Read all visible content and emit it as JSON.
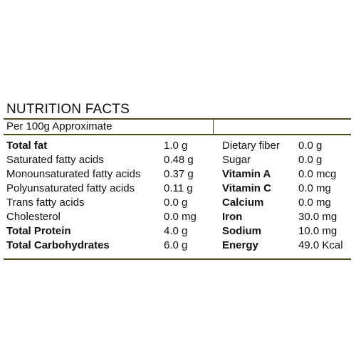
{
  "title": "NUTRITION FACTS",
  "serving": "Per 100g Approximate",
  "left_rows": [
    {
      "label": "Total fat",
      "value": "1.0 g",
      "bold": true
    },
    {
      "label": "Saturated fatty acids",
      "value": "0.48 g",
      "bold": false
    },
    {
      "label": "Monounsaturated fatty acids",
      "value": "0.37 g",
      "bold": false
    },
    {
      "label": "Polyunsaturated fatty acids",
      "value": "0.11 g",
      "bold": false
    },
    {
      "label": "Trans fatty acids",
      "value": "0.0 g",
      "bold": false
    },
    {
      "label": "Cholesterol",
      "value": "0.0 mg",
      "bold": false
    },
    {
      "label": "Total Protein",
      "value": "4.0 g",
      "bold": true
    },
    {
      "label": "Total Carbohydrates",
      "value": "6.0 g",
      "bold": true
    }
  ],
  "right_rows": [
    {
      "label": "Dietary fiber",
      "value": "0.0 g",
      "bold": false
    },
    {
      "label": "Sugar",
      "value": "0.0 g",
      "bold": false
    },
    {
      "label": "Vitamin A",
      "value": "0.0 mcg",
      "bold": true
    },
    {
      "label": "Vitamin C",
      "value": "0.0 mg",
      "bold": true
    },
    {
      "label": "Calcium",
      "value": "0.0 mg",
      "bold": true
    },
    {
      "label": "Iron",
      "value": "30.0 mg",
      "bold": true
    },
    {
      "label": "Sodium",
      "value": "10.0 mg",
      "bold": true
    },
    {
      "label": "Energy",
      "value": "49.0 Kcal",
      "bold": true
    }
  ]
}
